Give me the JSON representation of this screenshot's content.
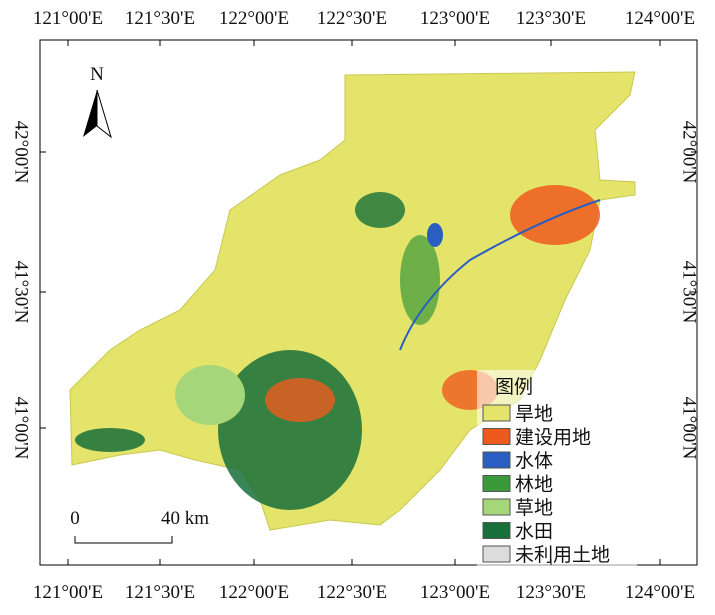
{
  "map": {
    "lon_ticks": [
      "121°00'E",
      "121°30'E",
      "122°00'E",
      "122°30'E",
      "123°00'E",
      "123°30'E",
      "124°00'E"
    ],
    "lat_ticks": [
      "42°00'N",
      "41°30'N",
      "41°00'N"
    ],
    "north": "N",
    "scale": {
      "start": "0",
      "end": "40 km"
    },
    "legend": {
      "title": "图例",
      "items": [
        {
          "label": "旱地",
          "color": "#e4e46a"
        },
        {
          "label": "建设用地",
          "color": "#ee5a1e"
        },
        {
          "label": "水体",
          "color": "#2a5ec0"
        },
        {
          "label": "林地",
          "color": "#3a9a3a"
        },
        {
          "label": "草地",
          "color": "#a6d67a"
        },
        {
          "label": "水田",
          "color": "#17703a"
        },
        {
          "label": "未利用土地",
          "color": "#dcdcdc"
        }
      ]
    }
  }
}
